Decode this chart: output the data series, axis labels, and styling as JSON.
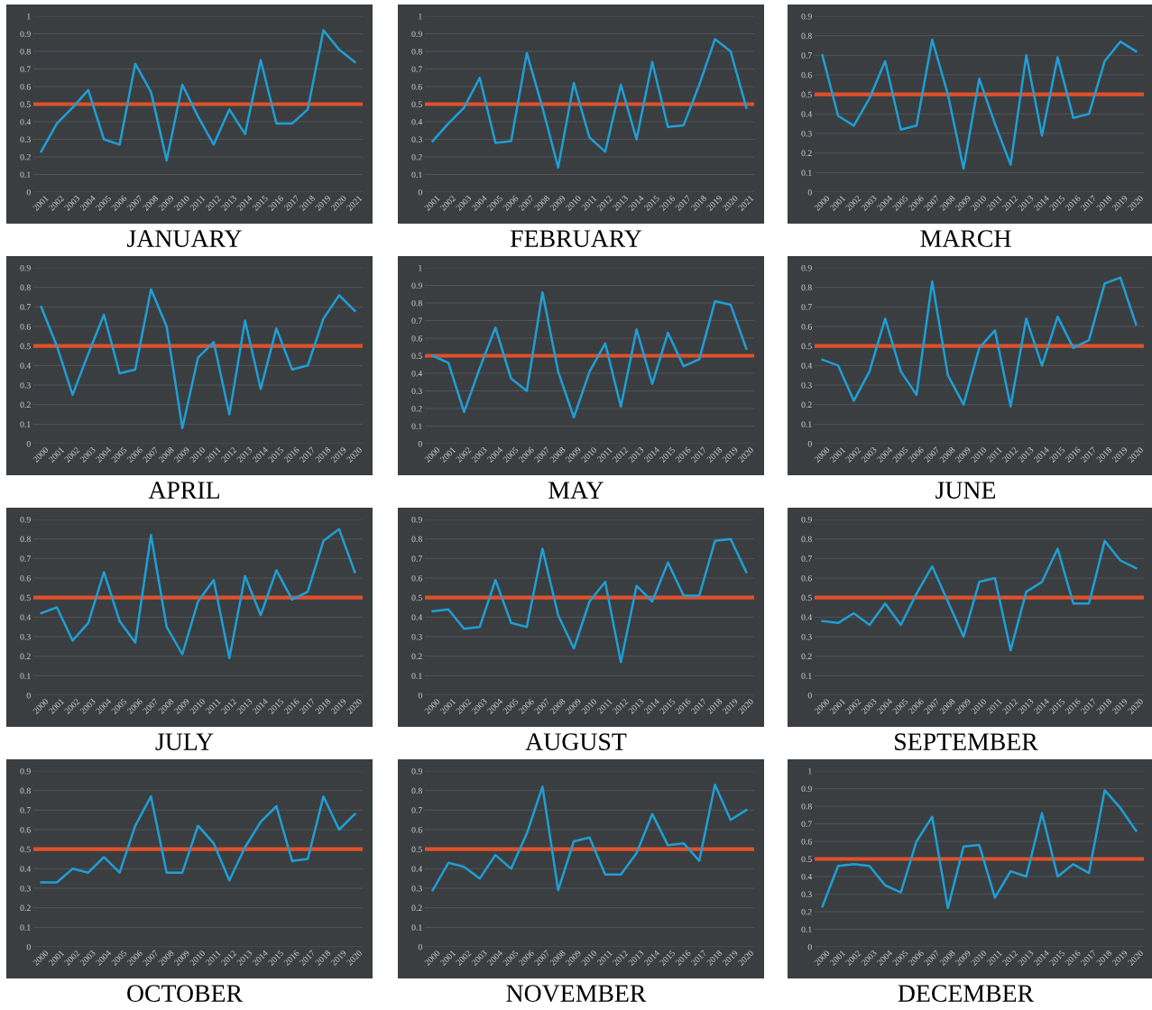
{
  "chart_data": [
    {
      "type": "line",
      "title": "JANUARY",
      "categories": [
        "2001",
        "2002",
        "2003",
        "2004",
        "2005",
        "2006",
        "2007",
        "2008",
        "2009",
        "2010",
        "2011",
        "2012",
        "2013",
        "2014",
        "2015",
        "2016",
        "2017",
        "2018",
        "2019",
        "2020",
        "2021"
      ],
      "series": [
        {
          "color": "#1e9fd6",
          "values": [
            0.23,
            0.39,
            0.48,
            0.58,
            0.3,
            0.27,
            0.73,
            0.57,
            0.18,
            0.61,
            0.43,
            0.27,
            0.47,
            0.33,
            0.75,
            0.39,
            0.39,
            0.47,
            0.92,
            0.81,
            0.74
          ]
        }
      ],
      "ylim": [
        0,
        1
      ],
      "yticks": [
        0,
        0.1,
        0.2,
        0.3,
        0.4,
        0.5,
        0.6,
        0.7,
        0.8,
        0.9,
        1
      ],
      "grid": "y",
      "ref_lines": [
        {
          "axis": "y",
          "value": 0.5,
          "color": "#e0502a"
        }
      ]
    },
    {
      "type": "line",
      "title": "FEBRUARY",
      "categories": [
        "2001",
        "2002",
        "2003",
        "2004",
        "2005",
        "2006",
        "2007",
        "2008",
        "2009",
        "2010",
        "2011",
        "2012",
        "2013",
        "2014",
        "2015",
        "2016",
        "2017",
        "2018",
        "2019",
        "2020",
        "2021"
      ],
      "series": [
        {
          "color": "#1e9fd6",
          "values": [
            0.29,
            0.39,
            0.48,
            0.65,
            0.28,
            0.29,
            0.79,
            0.48,
            0.14,
            0.62,
            0.31,
            0.23,
            0.61,
            0.3,
            0.74,
            0.37,
            0.38,
            0.61,
            0.87,
            0.8,
            0.48
          ]
        }
      ],
      "ylim": [
        0,
        1
      ],
      "yticks": [
        0,
        0.1,
        0.2,
        0.3,
        0.4,
        0.5,
        0.6,
        0.7,
        0.8,
        0.9,
        1
      ],
      "grid": "y",
      "ref_lines": [
        {
          "axis": "y",
          "value": 0.5,
          "color": "#e0502a"
        }
      ]
    },
    {
      "type": "line",
      "title": "MARCH",
      "categories": [
        "2000",
        "2001",
        "2002",
        "2003",
        "2004",
        "2005",
        "2006",
        "2007",
        "2008",
        "2009",
        "2010",
        "2011",
        "2012",
        "2013",
        "2014",
        "2015",
        "2016",
        "2017",
        "2018",
        "2019",
        "2020"
      ],
      "series": [
        {
          "color": "#1e9fd6",
          "values": [
            0.7,
            0.39,
            0.34,
            0.48,
            0.67,
            0.32,
            0.34,
            0.78,
            0.5,
            0.12,
            0.58,
            0.35,
            0.14,
            0.7,
            0.29,
            0.69,
            0.38,
            0.4,
            0.67,
            0.77,
            0.72
          ]
        }
      ],
      "ylim": [
        0,
        0.9
      ],
      "yticks": [
        0,
        0.1,
        0.2,
        0.3,
        0.4,
        0.5,
        0.6,
        0.7,
        0.8,
        0.9
      ],
      "grid": "y",
      "ref_lines": [
        {
          "axis": "y",
          "value": 0.5,
          "color": "#e0502a"
        }
      ]
    },
    {
      "type": "line",
      "title": "APRIL",
      "categories": [
        "2000",
        "2001",
        "2002",
        "2003",
        "2004",
        "2005",
        "2006",
        "2007",
        "2008",
        "2009",
        "2010",
        "2011",
        "2012",
        "2013",
        "2014",
        "2015",
        "2016",
        "2017",
        "2018",
        "2019",
        "2020"
      ],
      "series": [
        {
          "color": "#1e9fd6",
          "values": [
            0.7,
            0.5,
            0.25,
            0.46,
            0.66,
            0.36,
            0.38,
            0.79,
            0.6,
            0.08,
            0.44,
            0.52,
            0.15,
            0.63,
            0.28,
            0.59,
            0.38,
            0.4,
            0.64,
            0.76,
            0.68
          ]
        }
      ],
      "ylim": [
        0,
        0.9
      ],
      "yticks": [
        0,
        0.1,
        0.2,
        0.3,
        0.4,
        0.5,
        0.6,
        0.7,
        0.8,
        0.9
      ],
      "grid": "y",
      "ref_lines": [
        {
          "axis": "y",
          "value": 0.5,
          "color": "#e0502a"
        }
      ]
    },
    {
      "type": "line",
      "title": "MAY",
      "categories": [
        "2000",
        "2001",
        "2002",
        "2003",
        "2004",
        "2005",
        "2006",
        "2007",
        "2008",
        "2009",
        "2010",
        "2011",
        "2012",
        "2013",
        "2014",
        "2015",
        "2016",
        "2017",
        "2018",
        "2019",
        "2020"
      ],
      "series": [
        {
          "color": "#1e9fd6",
          "values": [
            0.5,
            0.46,
            0.18,
            0.43,
            0.66,
            0.37,
            0.3,
            0.86,
            0.41,
            0.15,
            0.41,
            0.57,
            0.21,
            0.65,
            0.34,
            0.63,
            0.44,
            0.48,
            0.81,
            0.79,
            0.54
          ]
        }
      ],
      "ylim": [
        0,
        1
      ],
      "yticks": [
        0,
        0.1,
        0.2,
        0.3,
        0.4,
        0.5,
        0.6,
        0.7,
        0.8,
        0.9,
        1
      ],
      "grid": "y",
      "ref_lines": [
        {
          "axis": "y",
          "value": 0.5,
          "color": "#e0502a"
        }
      ]
    },
    {
      "type": "line",
      "title": "JUNE",
      "categories": [
        "2000",
        "2001",
        "2002",
        "2003",
        "2004",
        "2005",
        "2006",
        "2007",
        "2008",
        "2009",
        "2010",
        "2011",
        "2012",
        "2013",
        "2014",
        "2015",
        "2016",
        "2017",
        "2018",
        "2019",
        "2020"
      ],
      "series": [
        {
          "color": "#1e9fd6",
          "values": [
            0.43,
            0.4,
            0.22,
            0.37,
            0.64,
            0.37,
            0.25,
            0.83,
            0.35,
            0.2,
            0.49,
            0.58,
            0.19,
            0.64,
            0.4,
            0.65,
            0.49,
            0.53,
            0.82,
            0.85,
            0.61
          ]
        }
      ],
      "ylim": [
        0,
        0.9
      ],
      "yticks": [
        0,
        0.1,
        0.2,
        0.3,
        0.4,
        0.5,
        0.6,
        0.7,
        0.8,
        0.9
      ],
      "grid": "y",
      "ref_lines": [
        {
          "axis": "y",
          "value": 0.5,
          "color": "#e0502a"
        }
      ]
    },
    {
      "type": "line",
      "title": "JULY",
      "categories": [
        "2000",
        "2001",
        "2002",
        "2003",
        "2004",
        "2005",
        "2006",
        "2007",
        "2008",
        "2009",
        "2010",
        "2011",
        "2012",
        "2013",
        "2014",
        "2015",
        "2016",
        "2017",
        "2018",
        "2019",
        "2020"
      ],
      "series": [
        {
          "color": "#1e9fd6",
          "values": [
            0.42,
            0.45,
            0.28,
            0.37,
            0.63,
            0.38,
            0.27,
            0.82,
            0.35,
            0.21,
            0.48,
            0.59,
            0.19,
            0.61,
            0.41,
            0.64,
            0.49,
            0.53,
            0.79,
            0.85,
            0.63
          ]
        }
      ],
      "ylim": [
        0,
        0.9
      ],
      "yticks": [
        0,
        0.1,
        0.2,
        0.3,
        0.4,
        0.5,
        0.6,
        0.7,
        0.8,
        0.9
      ],
      "grid": "y",
      "ref_lines": [
        {
          "axis": "y",
          "value": 0.5,
          "color": "#e0502a"
        }
      ]
    },
    {
      "type": "line",
      "title": "AUGUST",
      "categories": [
        "2000",
        "2001",
        "2002",
        "2003",
        "2004",
        "2005",
        "2006",
        "2007",
        "2008",
        "2009",
        "2010",
        "2011",
        "2012",
        "2013",
        "2014",
        "2015",
        "2016",
        "2017",
        "2018",
        "2019",
        "2020"
      ],
      "series": [
        {
          "color": "#1e9fd6",
          "values": [
            0.43,
            0.44,
            0.34,
            0.35,
            0.59,
            0.37,
            0.35,
            0.75,
            0.41,
            0.24,
            0.48,
            0.58,
            0.17,
            0.56,
            0.48,
            0.68,
            0.51,
            0.51,
            0.79,
            0.8,
            0.63
          ]
        }
      ],
      "ylim": [
        0,
        0.9
      ],
      "yticks": [
        0,
        0.1,
        0.2,
        0.3,
        0.4,
        0.5,
        0.6,
        0.7,
        0.8,
        0.9
      ],
      "grid": "y",
      "ref_lines": [
        {
          "axis": "y",
          "value": 0.5,
          "color": "#e0502a"
        }
      ]
    },
    {
      "type": "line",
      "title": "SEPTEMBER",
      "categories": [
        "2000",
        "2001",
        "2002",
        "2003",
        "2004",
        "2005",
        "2006",
        "2007",
        "2008",
        "2009",
        "2010",
        "2011",
        "2012",
        "2013",
        "2014",
        "2015",
        "2016",
        "2017",
        "2018",
        "2019",
        "2020"
      ],
      "series": [
        {
          "color": "#1e9fd6",
          "values": [
            0.38,
            0.37,
            0.42,
            0.36,
            0.47,
            0.36,
            0.52,
            0.66,
            0.48,
            0.3,
            0.58,
            0.6,
            0.23,
            0.53,
            0.58,
            0.75,
            0.47,
            0.47,
            0.79,
            0.69,
            0.65
          ]
        }
      ],
      "ylim": [
        0,
        0.9
      ],
      "yticks": [
        0,
        0.1,
        0.2,
        0.3,
        0.4,
        0.5,
        0.6,
        0.7,
        0.8,
        0.9
      ],
      "grid": "y",
      "ref_lines": [
        {
          "axis": "y",
          "value": 0.5,
          "color": "#e0502a"
        }
      ]
    },
    {
      "type": "line",
      "title": "OCTOBER",
      "categories": [
        "2000",
        "2001",
        "2002",
        "2003",
        "2004",
        "2005",
        "2006",
        "2007",
        "2008",
        "2009",
        "2010",
        "2011",
        "2012",
        "2013",
        "2014",
        "2015",
        "2016",
        "2017",
        "2018",
        "2019",
        "2020"
      ],
      "series": [
        {
          "color": "#1e9fd6",
          "values": [
            0.33,
            0.33,
            0.4,
            0.38,
            0.46,
            0.38,
            0.62,
            0.77,
            0.38,
            0.38,
            0.62,
            0.53,
            0.34,
            0.51,
            0.64,
            0.72,
            0.44,
            0.45,
            0.77,
            0.6,
            0.68
          ]
        }
      ],
      "ylim": [
        0,
        0.9
      ],
      "yticks": [
        0,
        0.1,
        0.2,
        0.3,
        0.4,
        0.5,
        0.6,
        0.7,
        0.8,
        0.9
      ],
      "grid": "y",
      "ref_lines": [
        {
          "axis": "y",
          "value": 0.5,
          "color": "#e0502a"
        }
      ]
    },
    {
      "type": "line",
      "title": "NOVEMBER",
      "categories": [
        "2000",
        "2001",
        "2002",
        "2003",
        "2004",
        "2005",
        "2006",
        "2007",
        "2008",
        "2009",
        "2010",
        "2011",
        "2012",
        "2013",
        "2014",
        "2015",
        "2016",
        "2017",
        "2018",
        "2019",
        "2020"
      ],
      "series": [
        {
          "color": "#1e9fd6",
          "values": [
            0.29,
            0.43,
            0.41,
            0.35,
            0.47,
            0.4,
            0.58,
            0.82,
            0.29,
            0.54,
            0.56,
            0.37,
            0.37,
            0.48,
            0.68,
            0.52,
            0.53,
            0.44,
            0.83,
            0.65,
            0.7
          ]
        }
      ],
      "ylim": [
        0,
        0.9
      ],
      "yticks": [
        0,
        0.1,
        0.2,
        0.3,
        0.4,
        0.5,
        0.6,
        0.7,
        0.8,
        0.9
      ],
      "grid": "y",
      "ref_lines": [
        {
          "axis": "y",
          "value": 0.5,
          "color": "#e0502a"
        }
      ]
    },
    {
      "type": "line",
      "title": "DECEMBER",
      "categories": [
        "2000",
        "2001",
        "2002",
        "2003",
        "2004",
        "2005",
        "2006",
        "2007",
        "2008",
        "2009",
        "2010",
        "2011",
        "2012",
        "2013",
        "2014",
        "2015",
        "2016",
        "2017",
        "2018",
        "2019",
        "2020"
      ],
      "series": [
        {
          "color": "#1e9fd6",
          "values": [
            0.23,
            0.46,
            0.47,
            0.46,
            0.35,
            0.31,
            0.6,
            0.74,
            0.22,
            0.57,
            0.58,
            0.28,
            0.43,
            0.4,
            0.76,
            0.4,
            0.47,
            0.42,
            0.89,
            0.79,
            0.66
          ]
        }
      ],
      "ylim": [
        0,
        1
      ],
      "yticks": [
        0,
        0.1,
        0.2,
        0.3,
        0.4,
        0.5,
        0.6,
        0.7,
        0.8,
        0.9,
        1
      ],
      "grid": "y",
      "ref_lines": [
        {
          "axis": "y",
          "value": 0.5,
          "color": "#e0502a"
        }
      ]
    }
  ]
}
